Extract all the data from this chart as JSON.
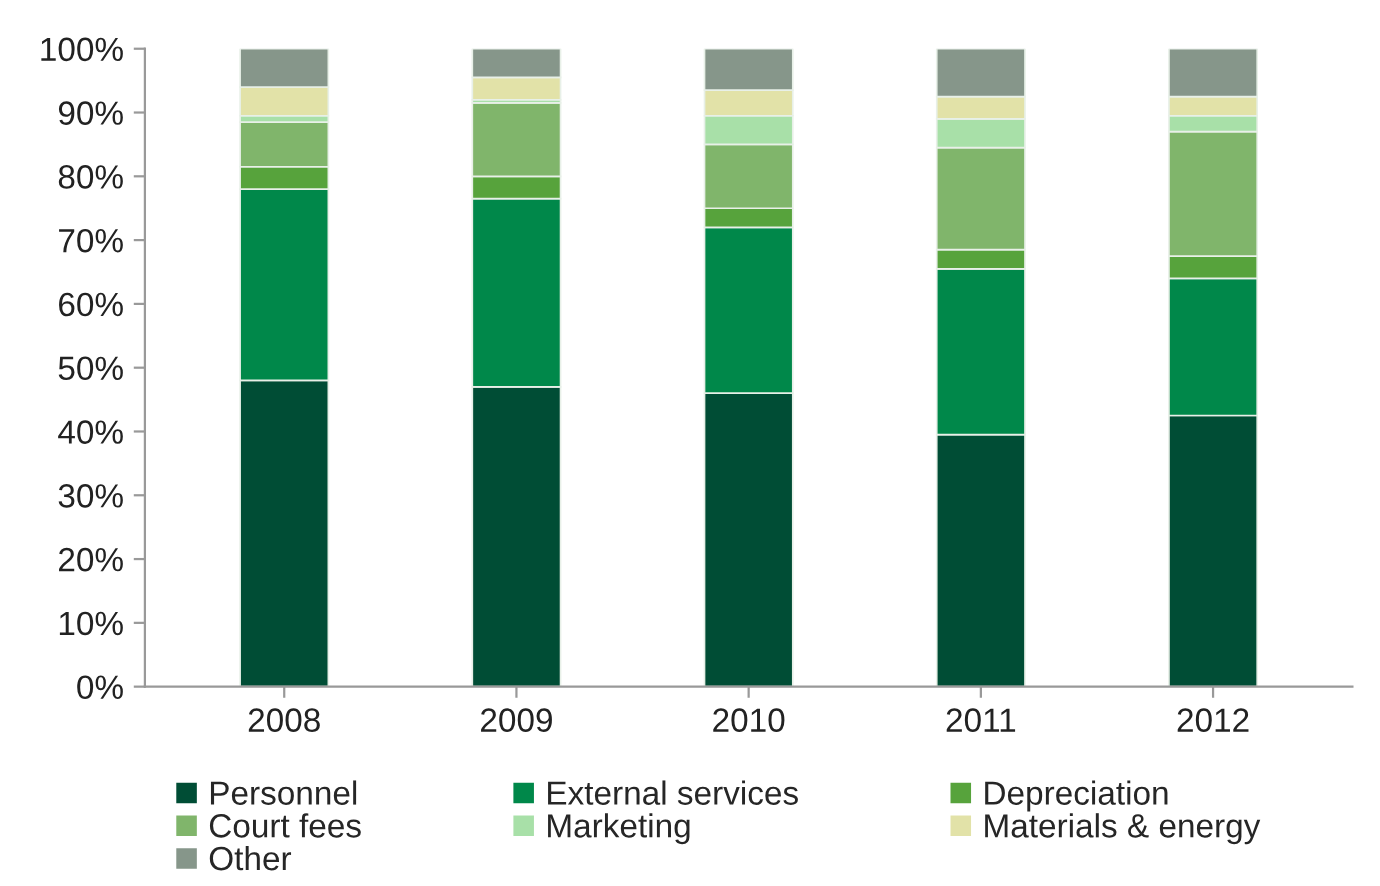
{
  "chart_data": {
    "type": "bar",
    "stacked": true,
    "categories": [
      "2008",
      "2009",
      "2010",
      "2011",
      "2012"
    ],
    "series": [
      {
        "name": "Personnel",
        "color": "#004d35",
        "values": [
          48,
          47,
          46,
          39.5,
          42.5
        ]
      },
      {
        "name": "External services",
        "color": "#00884a",
        "values": [
          30,
          29.5,
          26,
          26,
          21.5
        ]
      },
      {
        "name": "Depreciation",
        "color": "#57a33c",
        "values": [
          3.5,
          3.5,
          3,
          3,
          3.5
        ]
      },
      {
        "name": "Court fees",
        "color": "#80b56b",
        "values": [
          7,
          11.5,
          10,
          16,
          19.5
        ]
      },
      {
        "name": "Marketing",
        "color": "#a8e0a8",
        "values": [
          1,
          0.5,
          4.5,
          4.5,
          2.5
        ]
      },
      {
        "name": "Materials & energy",
        "color": "#e2e2a8",
        "values": [
          4.5,
          3.5,
          4,
          3.5,
          3
        ]
      },
      {
        "name": "Other",
        "color": "#86968a",
        "values": [
          6,
          4.5,
          6.5,
          7.5,
          7.5
        ]
      }
    ],
    "ylim": [
      0,
      100
    ],
    "yticks": [
      {
        "value": 0,
        "label": "0%"
      },
      {
        "value": 10,
        "label": "10%"
      },
      {
        "value": 20,
        "label": "20%"
      },
      {
        "value": 30,
        "label": "30%"
      },
      {
        "value": 40,
        "label": "40%"
      },
      {
        "value": 50,
        "label": "50%"
      },
      {
        "value": 60,
        "label": "60%"
      },
      {
        "value": 70,
        "label": "70%"
      },
      {
        "value": 80,
        "label": "80%"
      },
      {
        "value": 90,
        "label": "90%"
      },
      {
        "value": 100,
        "label": "100%"
      }
    ],
    "grid": false,
    "legend": "bottom"
  }
}
